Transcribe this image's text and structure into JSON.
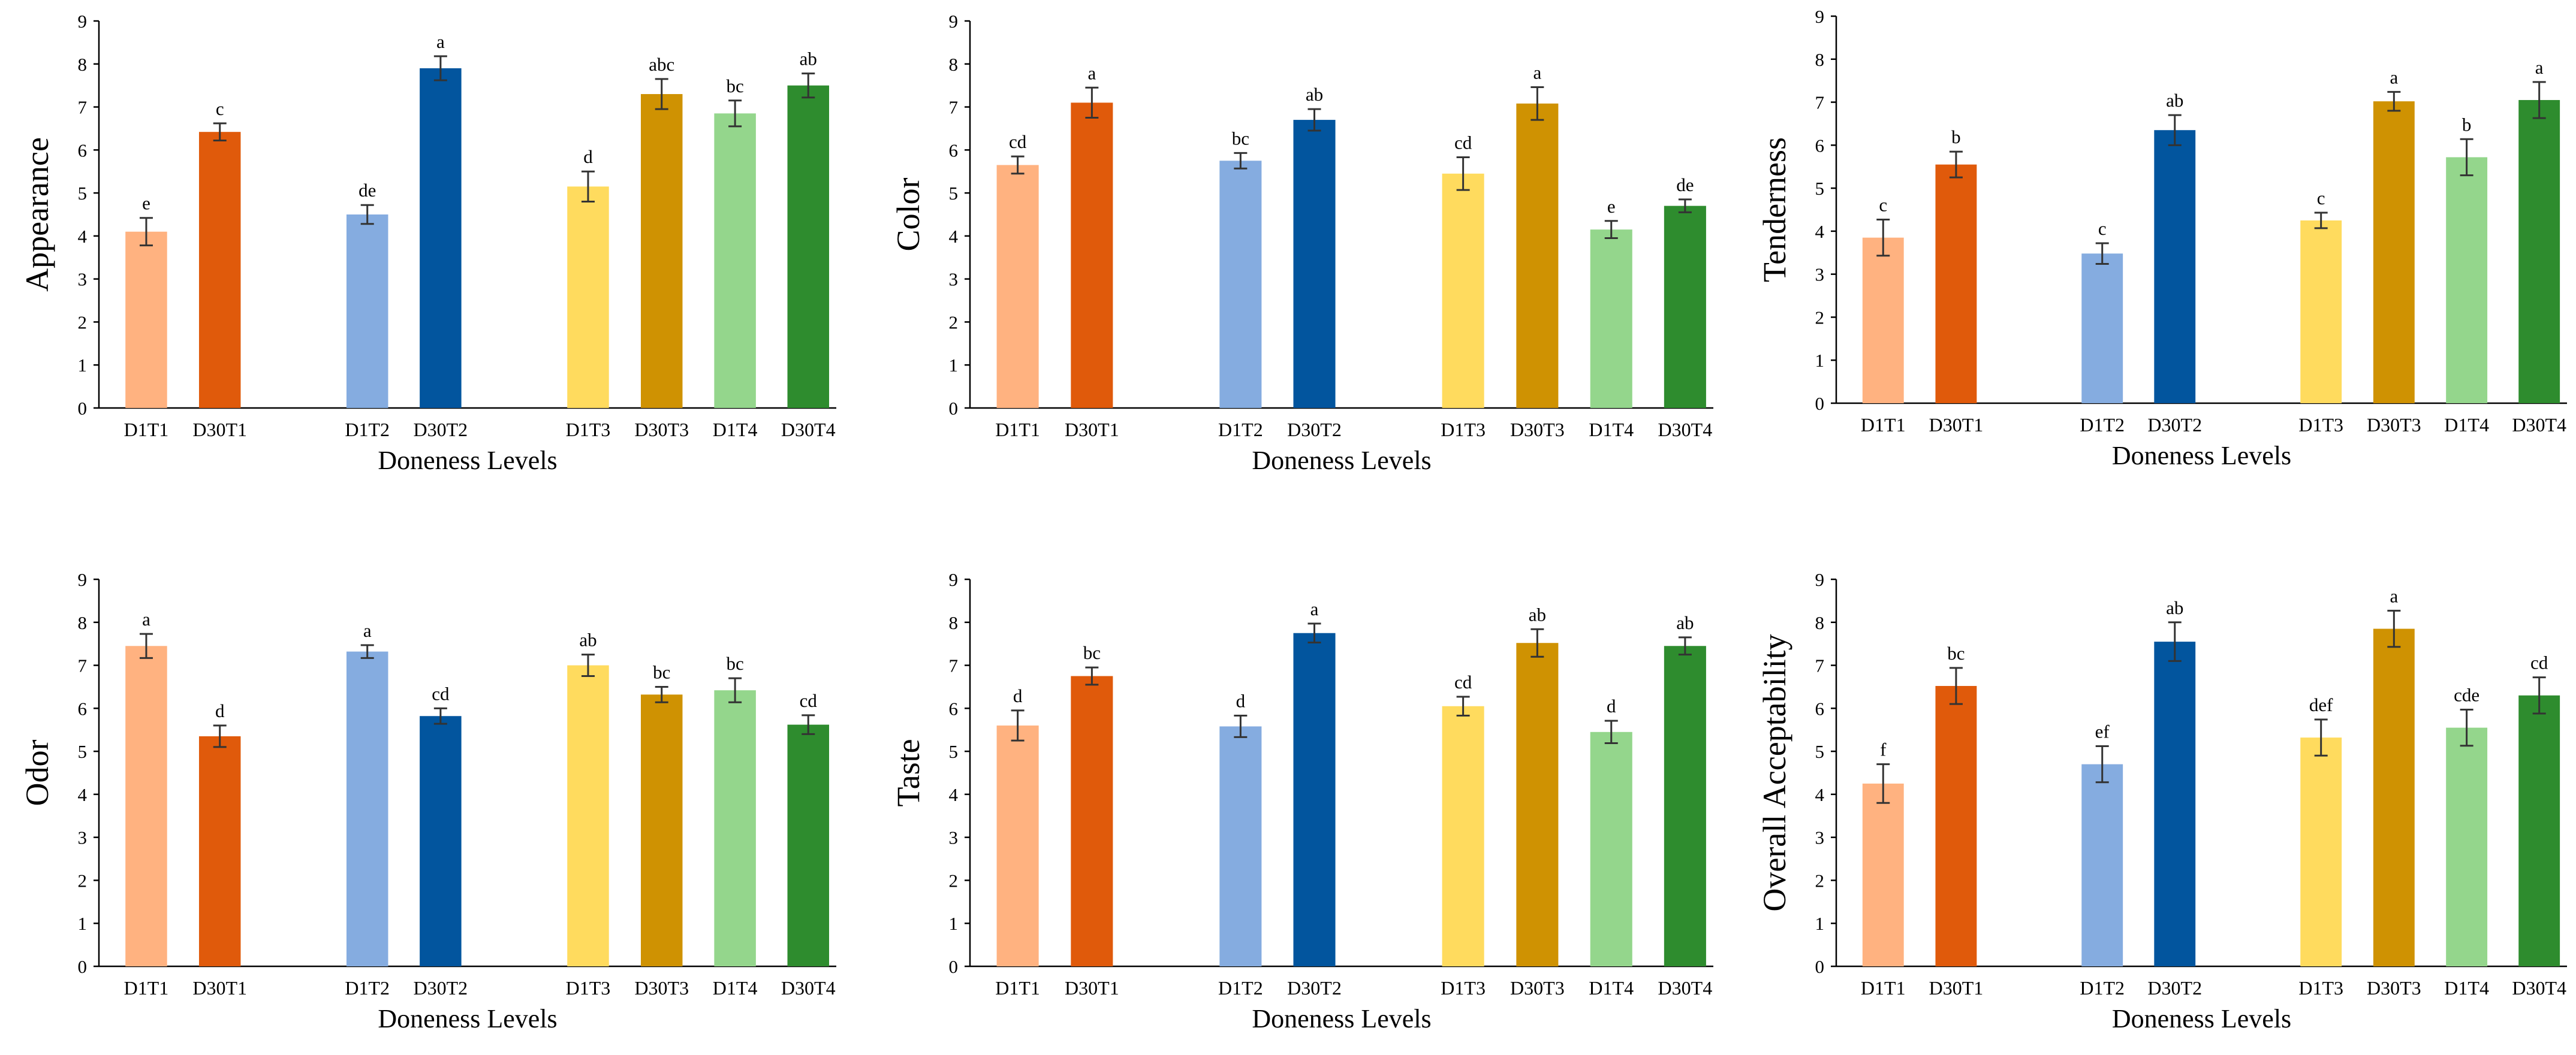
{
  "chart_data": [
    {
      "type": "bar",
      "ylabel": "Appearance",
      "xlabel": "Doneness Levels",
      "ylim": [
        0,
        9
      ],
      "yticks": [
        0,
        1,
        2,
        3,
        4,
        5,
        6,
        7,
        8,
        9
      ],
      "categories": [
        "D1T1",
        "D30T1",
        "D1T2",
        "D30T2",
        "D1T3",
        "D30T3",
        "D1T4",
        "D30T4"
      ],
      "values": [
        4.1,
        6.42,
        4.5,
        7.9,
        5.15,
        7.3,
        6.85,
        7.5
      ],
      "errors": [
        0.32,
        0.2,
        0.22,
        0.28,
        0.35,
        0.35,
        0.3,
        0.28
      ],
      "labels": [
        "e",
        "c",
        "de",
        "a",
        "d",
        "abc",
        "bc",
        "ab"
      ]
    },
    {
      "type": "bar",
      "ylabel": "Color",
      "xlabel": "Doneness Levels",
      "ylim": [
        0,
        9
      ],
      "yticks": [
        0,
        1,
        2,
        3,
        4,
        5,
        6,
        7,
        8,
        9
      ],
      "categories": [
        "D1T1",
        "D30T1",
        "D1T2",
        "D30T2",
        "D1T3",
        "D30T3",
        "D1T4",
        "D30T4"
      ],
      "values": [
        5.65,
        7.1,
        5.75,
        6.7,
        5.45,
        7.08,
        4.15,
        4.7
      ],
      "errors": [
        0.2,
        0.35,
        0.18,
        0.25,
        0.38,
        0.38,
        0.2,
        0.15
      ],
      "labels": [
        "cd",
        "a",
        "bc",
        "ab",
        "cd",
        "a",
        "e",
        "de"
      ]
    },
    {
      "type": "bar",
      "ylabel": "Tenderness",
      "xlabel": "Doneness Levels",
      "ylim": [
        0,
        9
      ],
      "yticks": [
        0,
        1,
        2,
        3,
        4,
        5,
        6,
        7,
        8,
        9
      ],
      "categories": [
        "D1T1",
        "D30T1",
        "D1T2",
        "D30T2",
        "D1T3",
        "D30T3",
        "D1T4",
        "D30T4"
      ],
      "values": [
        3.85,
        5.55,
        3.48,
        6.35,
        4.25,
        7.02,
        5.72,
        7.05
      ],
      "errors": [
        0.42,
        0.3,
        0.24,
        0.35,
        0.18,
        0.22,
        0.42,
        0.42
      ],
      "labels": [
        "c",
        "b",
        "c",
        "ab",
        "c",
        "a",
        "b",
        "a"
      ]
    },
    {
      "type": "bar",
      "ylabel": "Odor",
      "xlabel": "Doneness Levels",
      "ylim": [
        0,
        9
      ],
      "yticks": [
        0,
        1,
        2,
        3,
        4,
        5,
        6,
        7,
        8,
        9
      ],
      "categories": [
        "D1T1",
        "D30T1",
        "D1T2",
        "D30T2",
        "D1T3",
        "D30T3",
        "D1T4",
        "D30T4"
      ],
      "values": [
        7.45,
        5.35,
        7.32,
        5.82,
        7.0,
        6.32,
        6.42,
        5.62
      ],
      "errors": [
        0.28,
        0.25,
        0.15,
        0.18,
        0.25,
        0.18,
        0.28,
        0.22
      ],
      "labels": [
        "a",
        "d",
        "a",
        "cd",
        "ab",
        "bc",
        "bc",
        "cd"
      ]
    },
    {
      "type": "bar",
      "ylabel": "Taste",
      "xlabel": "Doneness Levels",
      "ylim": [
        0,
        9
      ],
      "yticks": [
        0,
        1,
        2,
        3,
        4,
        5,
        6,
        7,
        8,
        9
      ],
      "categories": [
        "D1T1",
        "D30T1",
        "D1T2",
        "D30T2",
        "D1T3",
        "D30T3",
        "D1T4",
        "D30T4"
      ],
      "values": [
        5.6,
        6.75,
        5.58,
        7.75,
        6.05,
        7.52,
        5.45,
        7.45
      ],
      "errors": [
        0.35,
        0.2,
        0.25,
        0.22,
        0.22,
        0.32,
        0.26,
        0.2
      ],
      "labels": [
        "d",
        "bc",
        "d",
        "a",
        "cd",
        "ab",
        "d",
        "ab"
      ]
    },
    {
      "type": "bar",
      "ylabel": "Overall Acceptability",
      "xlabel": "Doneness Levels",
      "ylim": [
        0,
        9
      ],
      "yticks": [
        0,
        1,
        2,
        3,
        4,
        5,
        6,
        7,
        8,
        9
      ],
      "categories": [
        "D1T1",
        "D30T1",
        "D1T2",
        "D30T2",
        "D1T3",
        "D30T3",
        "D1T4",
        "D30T4"
      ],
      "values": [
        4.25,
        6.52,
        4.7,
        7.55,
        5.32,
        7.85,
        5.55,
        6.3
      ],
      "errors": [
        0.45,
        0.42,
        0.42,
        0.45,
        0.42,
        0.42,
        0.42,
        0.42
      ],
      "labels": [
        "f",
        "bc",
        "ef",
        "ab",
        "def",
        "a",
        "cde",
        "cd"
      ]
    }
  ],
  "colors": [
    "#FFB280",
    "#E05A0B",
    "#85ACE0",
    "#02559E",
    "#FFDB5E",
    "#CF9202",
    "#94D68C",
    "#2E8C2E"
  ]
}
